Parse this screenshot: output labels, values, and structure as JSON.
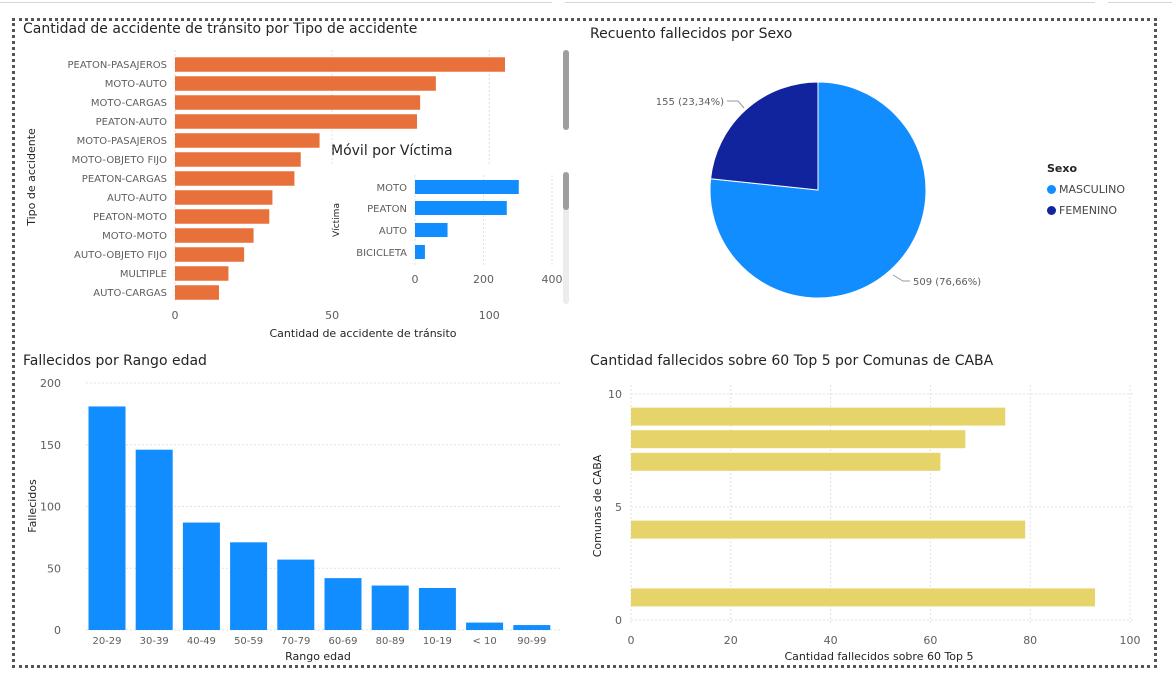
{
  "colors": {
    "orange": "#E8703A",
    "blue": "#118DFF",
    "navy": "#12239E",
    "yellow": "#E6D46B",
    "grid": "#e1e1e1",
    "axis_text": "#605E5C"
  },
  "panels": {
    "tipo": {
      "title": "Cantidad de accidente de tránsito por Tipo de accidente"
    },
    "sexo": {
      "title": "Recuento fallecidos por Sexo"
    },
    "edad": {
      "title": "Fallecidos por Rango edad"
    },
    "comunas": {
      "title": "Cantidad fallecidos sobre 60 Top 5 por Comunas de CABA"
    },
    "movil": {
      "title": "Móvil por Víctima"
    }
  },
  "chart_data": [
    {
      "id": "tipo",
      "type": "bar",
      "orientation": "horizontal",
      "title": "Cantidad de accidente de tránsito por Tipo de accidente",
      "xlabel": "Cantidad de accidente de tránsito",
      "ylabel": "Tipo de accidente",
      "categories": [
        "PEATON-PASAJEROS",
        "MOTO-AUTO",
        "MOTO-CARGAS",
        "PEATON-AUTO",
        "MOTO-PASAJEROS",
        "MOTO-OBJETO FIJO",
        "PEATON-CARGAS",
        "AUTO-AUTO",
        "PEATON-MOTO",
        "MOTO-MOTO",
        "AUTO-OBJETO FIJO",
        "MULTIPLE",
        "AUTO-CARGAS"
      ],
      "values": [
        105,
        83,
        78,
        77,
        46,
        40,
        38,
        31,
        30,
        25,
        22,
        17,
        14
      ],
      "xlim": [
        0,
        125
      ],
      "xticks": [
        0,
        50,
        100
      ],
      "grid": true
    },
    {
      "id": "movil",
      "type": "bar",
      "orientation": "horizontal",
      "title": "Móvil por Víctima",
      "xlabel": "",
      "ylabel": "Víctima",
      "categories": [
        "MOTO",
        "PEATON",
        "AUTO",
        "BICICLETA"
      ],
      "values": [
        303,
        268,
        95,
        29
      ],
      "xlim": [
        0,
        400
      ],
      "xticks": [
        0,
        200,
        400
      ],
      "grid": true
    },
    {
      "id": "sexo",
      "type": "pie",
      "title": "Recuento fallecidos por Sexo",
      "legend_title": "Sexo",
      "legend_position": "right",
      "slices": [
        {
          "label": "MASCULINO",
          "value": 509,
          "data_label": "509 (76,66%)"
        },
        {
          "label": "FEMENINO",
          "value": 155,
          "data_label": "155 (23,34%)"
        }
      ]
    },
    {
      "id": "edad",
      "type": "bar",
      "orientation": "vertical",
      "title": "Fallecidos por Rango edad",
      "xlabel": "Rango edad",
      "ylabel": "Fallecidos",
      "categories": [
        "20-29",
        "30-39",
        "40-49",
        "50-59",
        "70-79",
        "60-69",
        "80-89",
        "10-19",
        "< 10",
        "90-99"
      ],
      "values": [
        181,
        146,
        87,
        71,
        57,
        42,
        36,
        34,
        6,
        4
      ],
      "ylim": [
        0,
        200
      ],
      "yticks": [
        0,
        50,
        100,
        150,
        200
      ],
      "grid": true
    },
    {
      "id": "comunas",
      "type": "bar",
      "orientation": "horizontal",
      "title": "Cantidad fallecidos sobre 60 Top 5 por Comunas de CABA",
      "xlabel": "Cantidad fallecidos sobre 60 Top 5",
      "ylabel": "Comunas de CABA",
      "y_axis": "numeric",
      "points": [
        {
          "comuna": 9,
          "value": 75
        },
        {
          "comuna": 8,
          "value": 67
        },
        {
          "comuna": 7,
          "value": 62
        },
        {
          "comuna": 4,
          "value": 79
        },
        {
          "comuna": 1,
          "value": 93
        }
      ],
      "xlim": [
        0,
        100
      ],
      "xticks": [
        0,
        20,
        40,
        60,
        80,
        100
      ],
      "ylim": [
        0,
        10
      ],
      "yticks": [
        0,
        5,
        10
      ],
      "grid": true
    }
  ]
}
